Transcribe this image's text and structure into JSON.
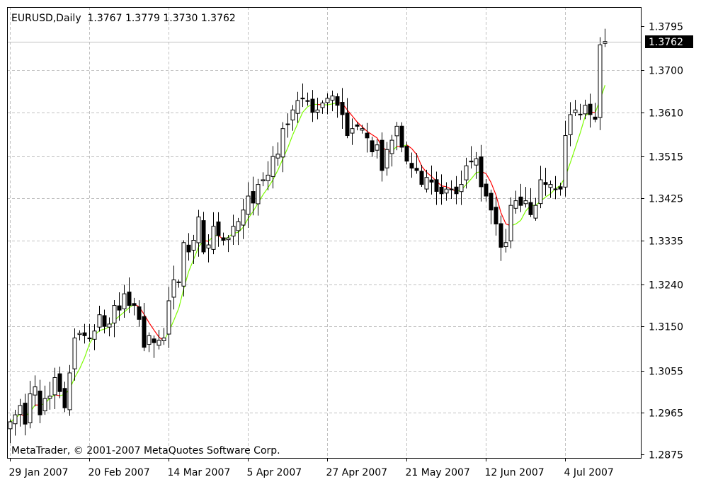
{
  "chart_data": {
    "type": "candlestick",
    "title": "EURUSD,Daily  1.3767 1.3779 1.3730 1.3762",
    "symbol": "EURUSD",
    "timeframe": "Daily",
    "ohlc_header": {
      "open": 1.3767,
      "high": 1.3779,
      "low": 1.373,
      "close": 1.3762
    },
    "watermark": "MetaTrader, © 2001-2007 MetaQuotes Software Corp.",
    "current_price": 1.3762,
    "current_price_label": "1.3762",
    "y_ticks": [
      "1.3795",
      "1.3700",
      "1.3610",
      "1.3515",
      "1.3425",
      "1.3335",
      "1.3240",
      "1.3150",
      "1.3055",
      "1.2965",
      "1.2875"
    ],
    "x_ticks": [
      {
        "label": "29 Jan 2007",
        "index": 0
      },
      {
        "label": "20 Feb 2007",
        "index": 16
      },
      {
        "label": "14 Mar 2007",
        "index": 32
      },
      {
        "label": "5 Apr 2007",
        "index": 48
      },
      {
        "label": "27 Apr 2007",
        "index": 64
      },
      {
        "label": "21 May 2007",
        "index": 80
      },
      {
        "label": "12 Jun 2007",
        "index": 96
      },
      {
        "label": "4 Jul 2007",
        "index": 112
      }
    ],
    "ylim": [
      1.2875,
      1.3795
    ],
    "grid": true,
    "colors": {
      "bull_fill": "#ffffff",
      "bear_fill": "#000000",
      "candle_outline": "#000000",
      "ma_up": "#7cfc00",
      "ma_down": "#ff0000",
      "grid": "#c0c0c0",
      "background": "#ffffff",
      "price_tag_bg": "#000000",
      "price_tag_text": "#ffffff"
    },
    "price_path": [
      1.2945,
      1.296,
      1.298,
      1.294,
      1.3005,
      1.302,
      1.296,
      1.2995,
      1.3,
      1.304,
      1.301,
      1.2975,
      1.305,
      1.3125,
      1.3135,
      1.313,
      1.3125,
      1.314,
      1.3175,
      1.315,
      1.3155,
      1.3195,
      1.3185,
      1.322,
      1.3195,
      1.3195,
      1.3165,
      1.3105,
      1.313,
      1.3115,
      1.312,
      1.3125,
      1.3205,
      1.325,
      1.3245,
      1.333,
      1.331,
      1.3335,
      1.3385,
      1.331,
      1.3325,
      1.3365,
      1.3345,
      1.3335,
      1.334,
      1.3365,
      1.3375,
      1.34,
      1.343,
      1.3415,
      1.3455,
      1.3465,
      1.3475,
      1.3515,
      1.352,
      1.3575,
      1.3585,
      1.3615,
      1.3635,
      1.364,
      1.3635,
      1.361,
      1.3615,
      1.363,
      1.364,
      1.3645,
      1.3625,
      1.3605,
      1.356,
      1.3575,
      1.358,
      1.3575,
      1.3555,
      1.3525,
      1.354,
      1.3485,
      1.353,
      1.355,
      1.358,
      1.3535,
      1.3505,
      1.349,
      1.3485,
      1.3455,
      1.347,
      1.346,
      1.344,
      1.3435,
      1.3445,
      1.3445,
      1.3435,
      1.3455,
      1.3495,
      1.3505,
      1.351,
      1.345,
      1.343,
      1.34,
      1.337,
      1.332,
      1.333,
      1.341,
      1.342,
      1.341,
      1.342,
      1.339,
      1.341,
      1.3465,
      1.3455,
      1.3455,
      1.3445,
      1.3445,
      1.356,
      1.3605,
      1.3615,
      1.3605,
      1.3625,
      1.3605,
      1.3595,
      1.3755,
      1.3762
    ]
  }
}
